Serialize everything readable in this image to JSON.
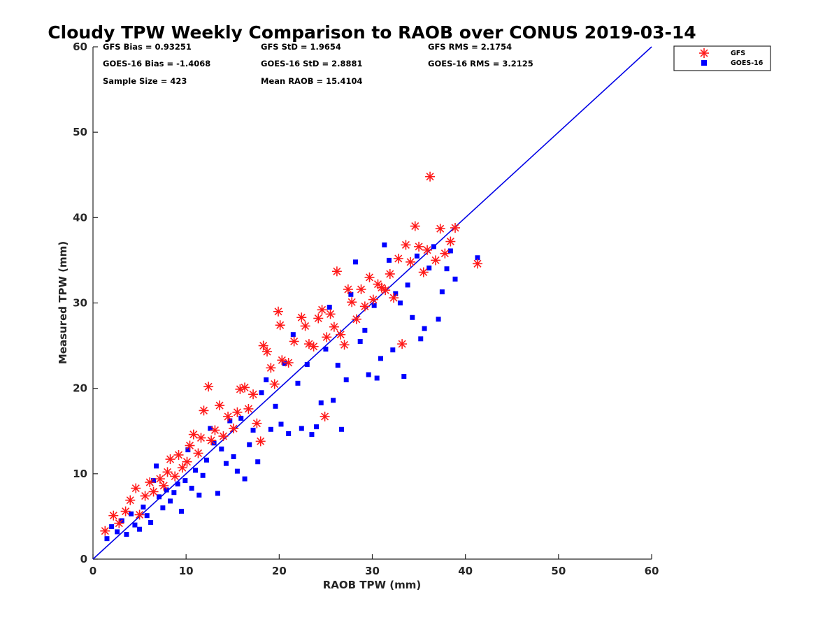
{
  "chart_data": {
    "type": "scatter",
    "title": "Cloudy TPW Weekly Comparison to RAOB over CONUS 2019-03-14",
    "xlabel": "RAOB TPW (mm)",
    "ylabel": "Measured TPW (mm)",
    "xlim": [
      0,
      60
    ],
    "ylim": [
      0,
      60
    ],
    "xticks": [
      "0",
      "10",
      "20",
      "30",
      "40",
      "50",
      "60"
    ],
    "yticks": [
      "0",
      "10",
      "20",
      "30",
      "40",
      "50",
      "60"
    ],
    "grid": false,
    "legend_position": "outside-top-right",
    "one_to_one_line": {
      "from": [
        0,
        0
      ],
      "to": [
        60,
        60
      ],
      "color": "#0000e6"
    },
    "stats": {
      "gfs_bias": "GFS Bias = 0.93251",
      "gfs_std": "GFS StD = 1.9654",
      "gfs_rms": "GFS RMS = 2.1754",
      "goes_bias": "GOES-16 Bias = -1.4068",
      "goes_std": "GOES-16 StD = 2.8881",
      "goes_rms": "GOES-16 RMS = 3.2125",
      "sample_size": "Sample Size = 423",
      "mean_raob": "Mean RAOB = 15.4104"
    },
    "series": [
      {
        "name": "GFS",
        "marker": "asterisk",
        "color": "#ff1a1a",
        "points": [
          [
            1.3,
            3.3
          ],
          [
            2.2,
            5.1
          ],
          [
            2.8,
            4.2
          ],
          [
            3.5,
            5.6
          ],
          [
            4.0,
            6.9
          ],
          [
            4.6,
            8.3
          ],
          [
            5.0,
            5.2
          ],
          [
            5.6,
            7.4
          ],
          [
            6.1,
            9.0
          ],
          [
            6.5,
            7.9
          ],
          [
            7.2,
            9.4
          ],
          [
            7.6,
            8.6
          ],
          [
            8.0,
            10.2
          ],
          [
            8.3,
            11.7
          ],
          [
            8.8,
            9.7
          ],
          [
            9.2,
            12.2
          ],
          [
            9.6,
            10.7
          ],
          [
            10.1,
            11.4
          ],
          [
            10.4,
            13.3
          ],
          [
            10.8,
            14.6
          ],
          [
            11.3,
            12.4
          ],
          [
            11.6,
            14.2
          ],
          [
            11.9,
            17.4
          ],
          [
            12.4,
            20.2
          ],
          [
            12.7,
            13.9
          ],
          [
            13.1,
            15.1
          ],
          [
            13.6,
            18.0
          ],
          [
            14.0,
            14.4
          ],
          [
            14.5,
            16.7
          ],
          [
            15.1,
            15.3
          ],
          [
            15.5,
            17.2
          ],
          [
            15.8,
            19.9
          ],
          [
            16.3,
            20.1
          ],
          [
            16.7,
            17.6
          ],
          [
            17.2,
            19.3
          ],
          [
            17.6,
            15.9
          ],
          [
            18.0,
            13.8
          ],
          [
            18.3,
            25.0
          ],
          [
            18.7,
            24.3
          ],
          [
            19.1,
            22.4
          ],
          [
            19.5,
            20.5
          ],
          [
            19.9,
            29.0
          ],
          [
            20.1,
            27.4
          ],
          [
            20.3,
            23.3
          ],
          [
            21.0,
            23.0
          ],
          [
            21.6,
            25.5
          ],
          [
            22.4,
            28.3
          ],
          [
            22.8,
            27.3
          ],
          [
            23.2,
            25.2
          ],
          [
            23.7,
            24.9
          ],
          [
            24.2,
            28.2
          ],
          [
            24.6,
            29.2
          ],
          [
            24.9,
            16.7
          ],
          [
            25.1,
            26.0
          ],
          [
            25.5,
            28.7
          ],
          [
            25.9,
            27.2
          ],
          [
            26.2,
            33.7
          ],
          [
            26.6,
            26.3
          ],
          [
            27.0,
            25.1
          ],
          [
            27.4,
            31.6
          ],
          [
            27.8,
            30.1
          ],
          [
            28.3,
            28.1
          ],
          [
            28.8,
            31.6
          ],
          [
            29.2,
            29.6
          ],
          [
            29.7,
            33.0
          ],
          [
            30.1,
            30.4
          ],
          [
            30.6,
            32.2
          ],
          [
            31.0,
            31.8
          ],
          [
            31.4,
            31.5
          ],
          [
            31.9,
            33.4
          ],
          [
            32.3,
            30.6
          ],
          [
            32.8,
            35.2
          ],
          [
            33.2,
            25.2
          ],
          [
            33.6,
            36.8
          ],
          [
            34.1,
            34.8
          ],
          [
            34.6,
            39.0
          ],
          [
            35.0,
            36.6
          ],
          [
            35.5,
            33.6
          ],
          [
            35.9,
            36.2
          ],
          [
            36.2,
            44.8
          ],
          [
            36.8,
            35.0
          ],
          [
            37.3,
            38.7
          ],
          [
            37.8,
            35.8
          ],
          [
            38.4,
            37.2
          ],
          [
            38.9,
            38.8
          ],
          [
            41.3,
            34.6
          ]
        ]
      },
      {
        "name": "GOES-16",
        "marker": "square",
        "color": "#0000ff",
        "points": [
          [
            1.5,
            2.4
          ],
          [
            2.0,
            3.8
          ],
          [
            2.6,
            3.2
          ],
          [
            3.1,
            4.5
          ],
          [
            3.6,
            2.9
          ],
          [
            4.1,
            5.3
          ],
          [
            4.5,
            4.0
          ],
          [
            5.0,
            3.5
          ],
          [
            5.4,
            6.1
          ],
          [
            5.8,
            5.1
          ],
          [
            6.2,
            4.3
          ],
          [
            6.5,
            9.2
          ],
          [
            6.8,
            10.9
          ],
          [
            7.1,
            7.3
          ],
          [
            7.5,
            6.0
          ],
          [
            7.9,
            8.1
          ],
          [
            8.3,
            6.8
          ],
          [
            8.7,
            7.8
          ],
          [
            9.1,
            8.8
          ],
          [
            9.5,
            5.6
          ],
          [
            9.9,
            9.2
          ],
          [
            10.2,
            12.8
          ],
          [
            10.6,
            8.3
          ],
          [
            11.0,
            10.4
          ],
          [
            11.4,
            7.5
          ],
          [
            11.8,
            9.8
          ],
          [
            12.2,
            11.6
          ],
          [
            12.6,
            15.3
          ],
          [
            13.0,
            13.6
          ],
          [
            13.4,
            7.7
          ],
          [
            13.8,
            12.9
          ],
          [
            14.3,
            11.2
          ],
          [
            14.7,
            16.2
          ],
          [
            15.1,
            12.0
          ],
          [
            15.5,
            10.3
          ],
          [
            15.9,
            16.5
          ],
          [
            16.3,
            9.4
          ],
          [
            16.8,
            13.4
          ],
          [
            17.2,
            15.1
          ],
          [
            17.7,
            11.4
          ],
          [
            18.1,
            19.5
          ],
          [
            18.6,
            21.0
          ],
          [
            19.1,
            15.2
          ],
          [
            19.6,
            17.9
          ],
          [
            20.2,
            15.8
          ],
          [
            20.6,
            22.9
          ],
          [
            21.0,
            14.7
          ],
          [
            21.5,
            26.3
          ],
          [
            22.0,
            20.6
          ],
          [
            22.4,
            15.3
          ],
          [
            23.0,
            22.8
          ],
          [
            23.5,
            14.6
          ],
          [
            24.0,
            15.5
          ],
          [
            24.5,
            18.3
          ],
          [
            25.0,
            24.6
          ],
          [
            25.4,
            29.5
          ],
          [
            25.8,
            18.6
          ],
          [
            26.3,
            22.7
          ],
          [
            26.7,
            15.2
          ],
          [
            27.2,
            21.0
          ],
          [
            27.7,
            31.0
          ],
          [
            28.2,
            34.8
          ],
          [
            28.7,
            25.5
          ],
          [
            29.2,
            26.8
          ],
          [
            29.6,
            21.6
          ],
          [
            30.2,
            29.7
          ],
          [
            30.5,
            21.2
          ],
          [
            30.9,
            23.5
          ],
          [
            31.3,
            36.8
          ],
          [
            31.8,
            35.0
          ],
          [
            32.2,
            24.5
          ],
          [
            32.5,
            31.1
          ],
          [
            33.0,
            30.0
          ],
          [
            33.4,
            21.4
          ],
          [
            33.8,
            32.1
          ],
          [
            34.3,
            28.3
          ],
          [
            34.8,
            35.5
          ],
          [
            35.2,
            25.8
          ],
          [
            35.6,
            27.0
          ],
          [
            36.1,
            34.1
          ],
          [
            36.6,
            36.6
          ],
          [
            37.1,
            28.1
          ],
          [
            37.5,
            31.3
          ],
          [
            38.0,
            34.0
          ],
          [
            38.4,
            36.1
          ],
          [
            38.9,
            32.8
          ],
          [
            41.3,
            35.3
          ]
        ]
      }
    ]
  }
}
